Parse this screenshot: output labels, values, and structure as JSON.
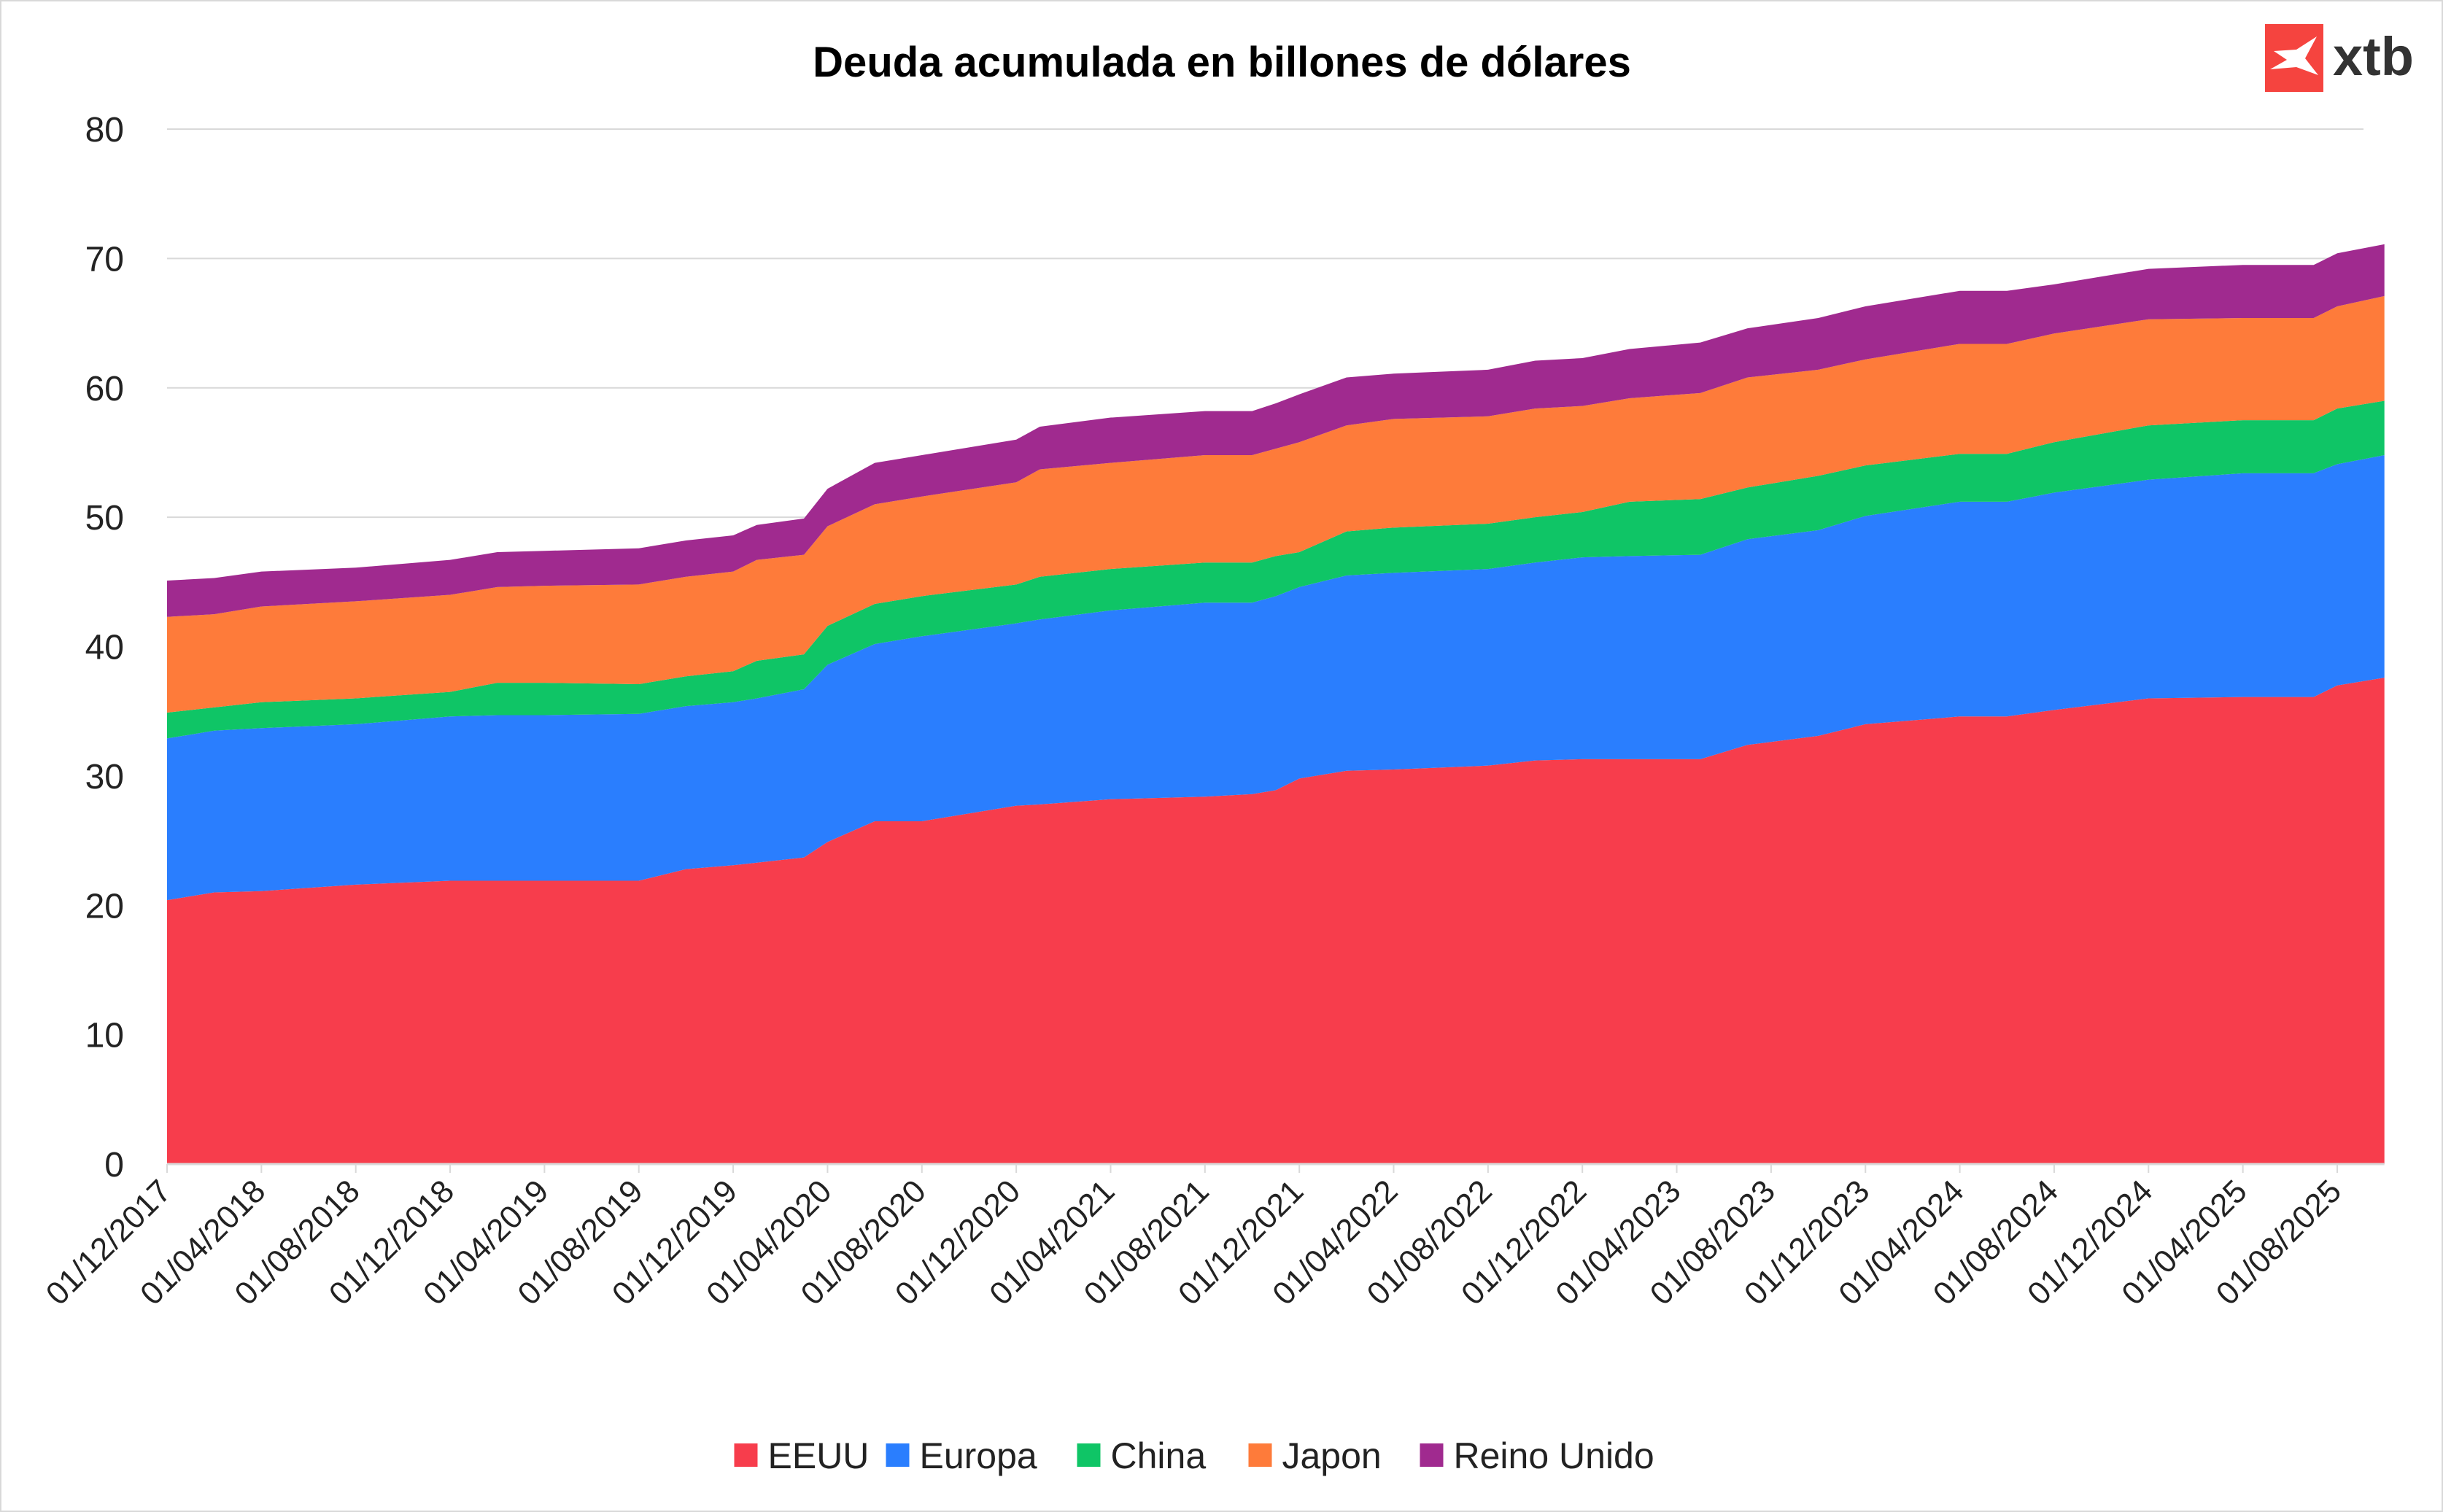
{
  "chart_data": {
    "type": "area",
    "stacked": true,
    "title": "Deuda acumulada en billones de dólares",
    "xlabel": "",
    "ylabel": "",
    "ylim": [
      0,
      80
    ],
    "yticks": [
      0,
      10,
      20,
      30,
      40,
      50,
      60,
      70,
      80
    ],
    "grid": true,
    "legend": "bottom",
    "xtick_labels": [
      "01/12/2017",
      "01/04/2018",
      "01/08/2018",
      "01/12/2018",
      "01/04/2019",
      "01/08/2019",
      "01/12/2019",
      "01/04/2020",
      "01/08/2020",
      "01/12/2020",
      "01/04/2021",
      "01/08/2021",
      "01/12/2021",
      "01/04/2022",
      "01/08/2022",
      "01/12/2022",
      "01/04/2023",
      "01/08/2023",
      "01/12/2023",
      "01/04/2024",
      "01/08/2024",
      "01/12/2024",
      "01/04/2025",
      "01/08/2025"
    ],
    "x": [
      "01/12/2017",
      "01/02/2018",
      "01/04/2018",
      "01/08/2018",
      "01/12/2018",
      "01/02/2019",
      "01/04/2019",
      "01/08/2019",
      "01/10/2019",
      "01/12/2019",
      "01/01/2020",
      "01/03/2020",
      "01/04/2020",
      "01/06/2020",
      "01/08/2020",
      "01/12/2020",
      "01/01/2021",
      "01/04/2021",
      "01/08/2021",
      "01/10/2021",
      "01/11/2021",
      "01/12/2021",
      "01/02/2022",
      "01/04/2022",
      "01/08/2022",
      "01/10/2022",
      "01/12/2022",
      "01/02/2023",
      "01/05/2023",
      "01/07/2023",
      "01/10/2023",
      "01/12/2023",
      "01/04/2024",
      "01/06/2024",
      "01/08/2024",
      "01/12/2024",
      "01/04/2025",
      "01/07/2025",
      "01/08/2025",
      "01/10/2025"
    ],
    "series": [
      {
        "name": "EEUU",
        "color": "#f73d4c",
        "values": [
          20.4,
          21.0,
          21.1,
          21.6,
          21.9,
          21.9,
          21.9,
          21.9,
          22.8,
          23.1,
          23.3,
          23.7,
          24.9,
          26.5,
          26.5,
          27.7,
          27.8,
          28.2,
          28.4,
          28.6,
          28.9,
          29.8,
          30.4,
          30.5,
          30.8,
          31.2,
          31.3,
          31.3,
          31.3,
          32.4,
          33.1,
          34.0,
          34.6,
          34.6,
          35.1,
          36.0,
          36.1,
          36.1,
          37.0,
          37.6
        ]
      },
      {
        "name": "Europa",
        "color": "#2a7efe",
        "values": [
          12.5,
          12.5,
          12.6,
          12.4,
          12.7,
          12.8,
          12.8,
          12.9,
          12.6,
          12.6,
          12.7,
          13.0,
          13.7,
          13.7,
          14.3,
          14.1,
          14.3,
          14.6,
          15.0,
          14.8,
          15.0,
          14.8,
          15.1,
          15.2,
          15.2,
          15.3,
          15.6,
          15.7,
          15.8,
          15.9,
          15.9,
          16.1,
          16.6,
          16.6,
          16.8,
          16.9,
          17.3,
          17.3,
          17.1,
          17.2
        ]
      },
      {
        "name": "China",
        "color": "#0fc566",
        "values": [
          2.0,
          1.8,
          2.0,
          2.0,
          1.9,
          2.5,
          2.5,
          2.3,
          2.3,
          2.4,
          2.9,
          2.7,
          3.0,
          3.1,
          3.1,
          3.0,
          3.3,
          3.2,
          3.1,
          3.1,
          3.1,
          2.7,
          3.4,
          3.5,
          3.5,
          3.5,
          3.5,
          4.2,
          4.3,
          4.0,
          4.2,
          3.9,
          3.7,
          3.7,
          3.9,
          4.2,
          4.1,
          4.1,
          4.3,
          4.2
        ]
      },
      {
        "name": "Japon",
        "color": "#fe7b3a",
        "values": [
          7.4,
          7.2,
          7.4,
          7.5,
          7.5,
          7.4,
          7.5,
          7.7,
          7.7,
          7.7,
          7.8,
          7.7,
          7.7,
          7.7,
          7.7,
          7.9,
          8.3,
          8.2,
          8.3,
          8.3,
          8.3,
          8.5,
          8.2,
          8.4,
          8.3,
          8.4,
          8.2,
          8.0,
          8.2,
          8.5,
          8.2,
          8.2,
          8.5,
          8.5,
          8.4,
          8.2,
          7.9,
          7.9,
          7.9,
          8.1
        ]
      },
      {
        "name": "Reino Unido",
        "color": "#a02a8f",
        "values": [
          2.8,
          2.8,
          2.7,
          2.6,
          2.7,
          2.7,
          2.7,
          2.8,
          2.8,
          2.8,
          2.7,
          2.8,
          2.9,
          3.2,
          3.2,
          3.3,
          3.3,
          3.5,
          3.4,
          3.4,
          3.5,
          3.7,
          3.7,
          3.5,
          3.6,
          3.7,
          3.7,
          3.8,
          3.9,
          3.8,
          4.0,
          4.1,
          4.1,
          4.1,
          3.8,
          3.9,
          4.1,
          4.1,
          4.1,
          4.0
        ]
      }
    ]
  },
  "logo": {
    "text": "xtb",
    "color": "#f5443f"
  }
}
